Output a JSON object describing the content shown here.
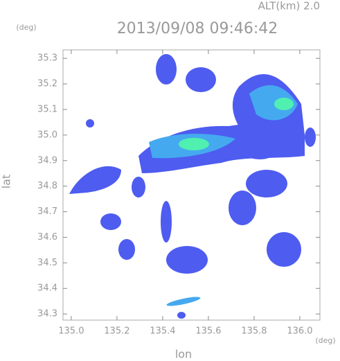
{
  "chart_data": {
    "type": "map",
    "title": "2013/09/08 09:46:42",
    "subtitle": "ALT(km) 2.0",
    "xlabel": "lon",
    "ylabel": "lat",
    "xunit": "(deg)",
    "yunit": "(deg)",
    "xlim": [
      134.964,
      136.088
    ],
    "ylim": [
      34.276,
      35.333
    ],
    "xticks": [
      {
        "value": 135,
        "label": "135.0"
      },
      135.2,
      135.4,
      135.6,
      135.8,
      {
        "value": 136,
        "label": "136.0"
      }
    ],
    "yticks": [
      34.3,
      34.4,
      34.5,
      34.6,
      34.7,
      34.8,
      34.9,
      {
        "value": 35,
        "label": "35.0"
      },
      35.1,
      35.2,
      35.3
    ]
  }
}
